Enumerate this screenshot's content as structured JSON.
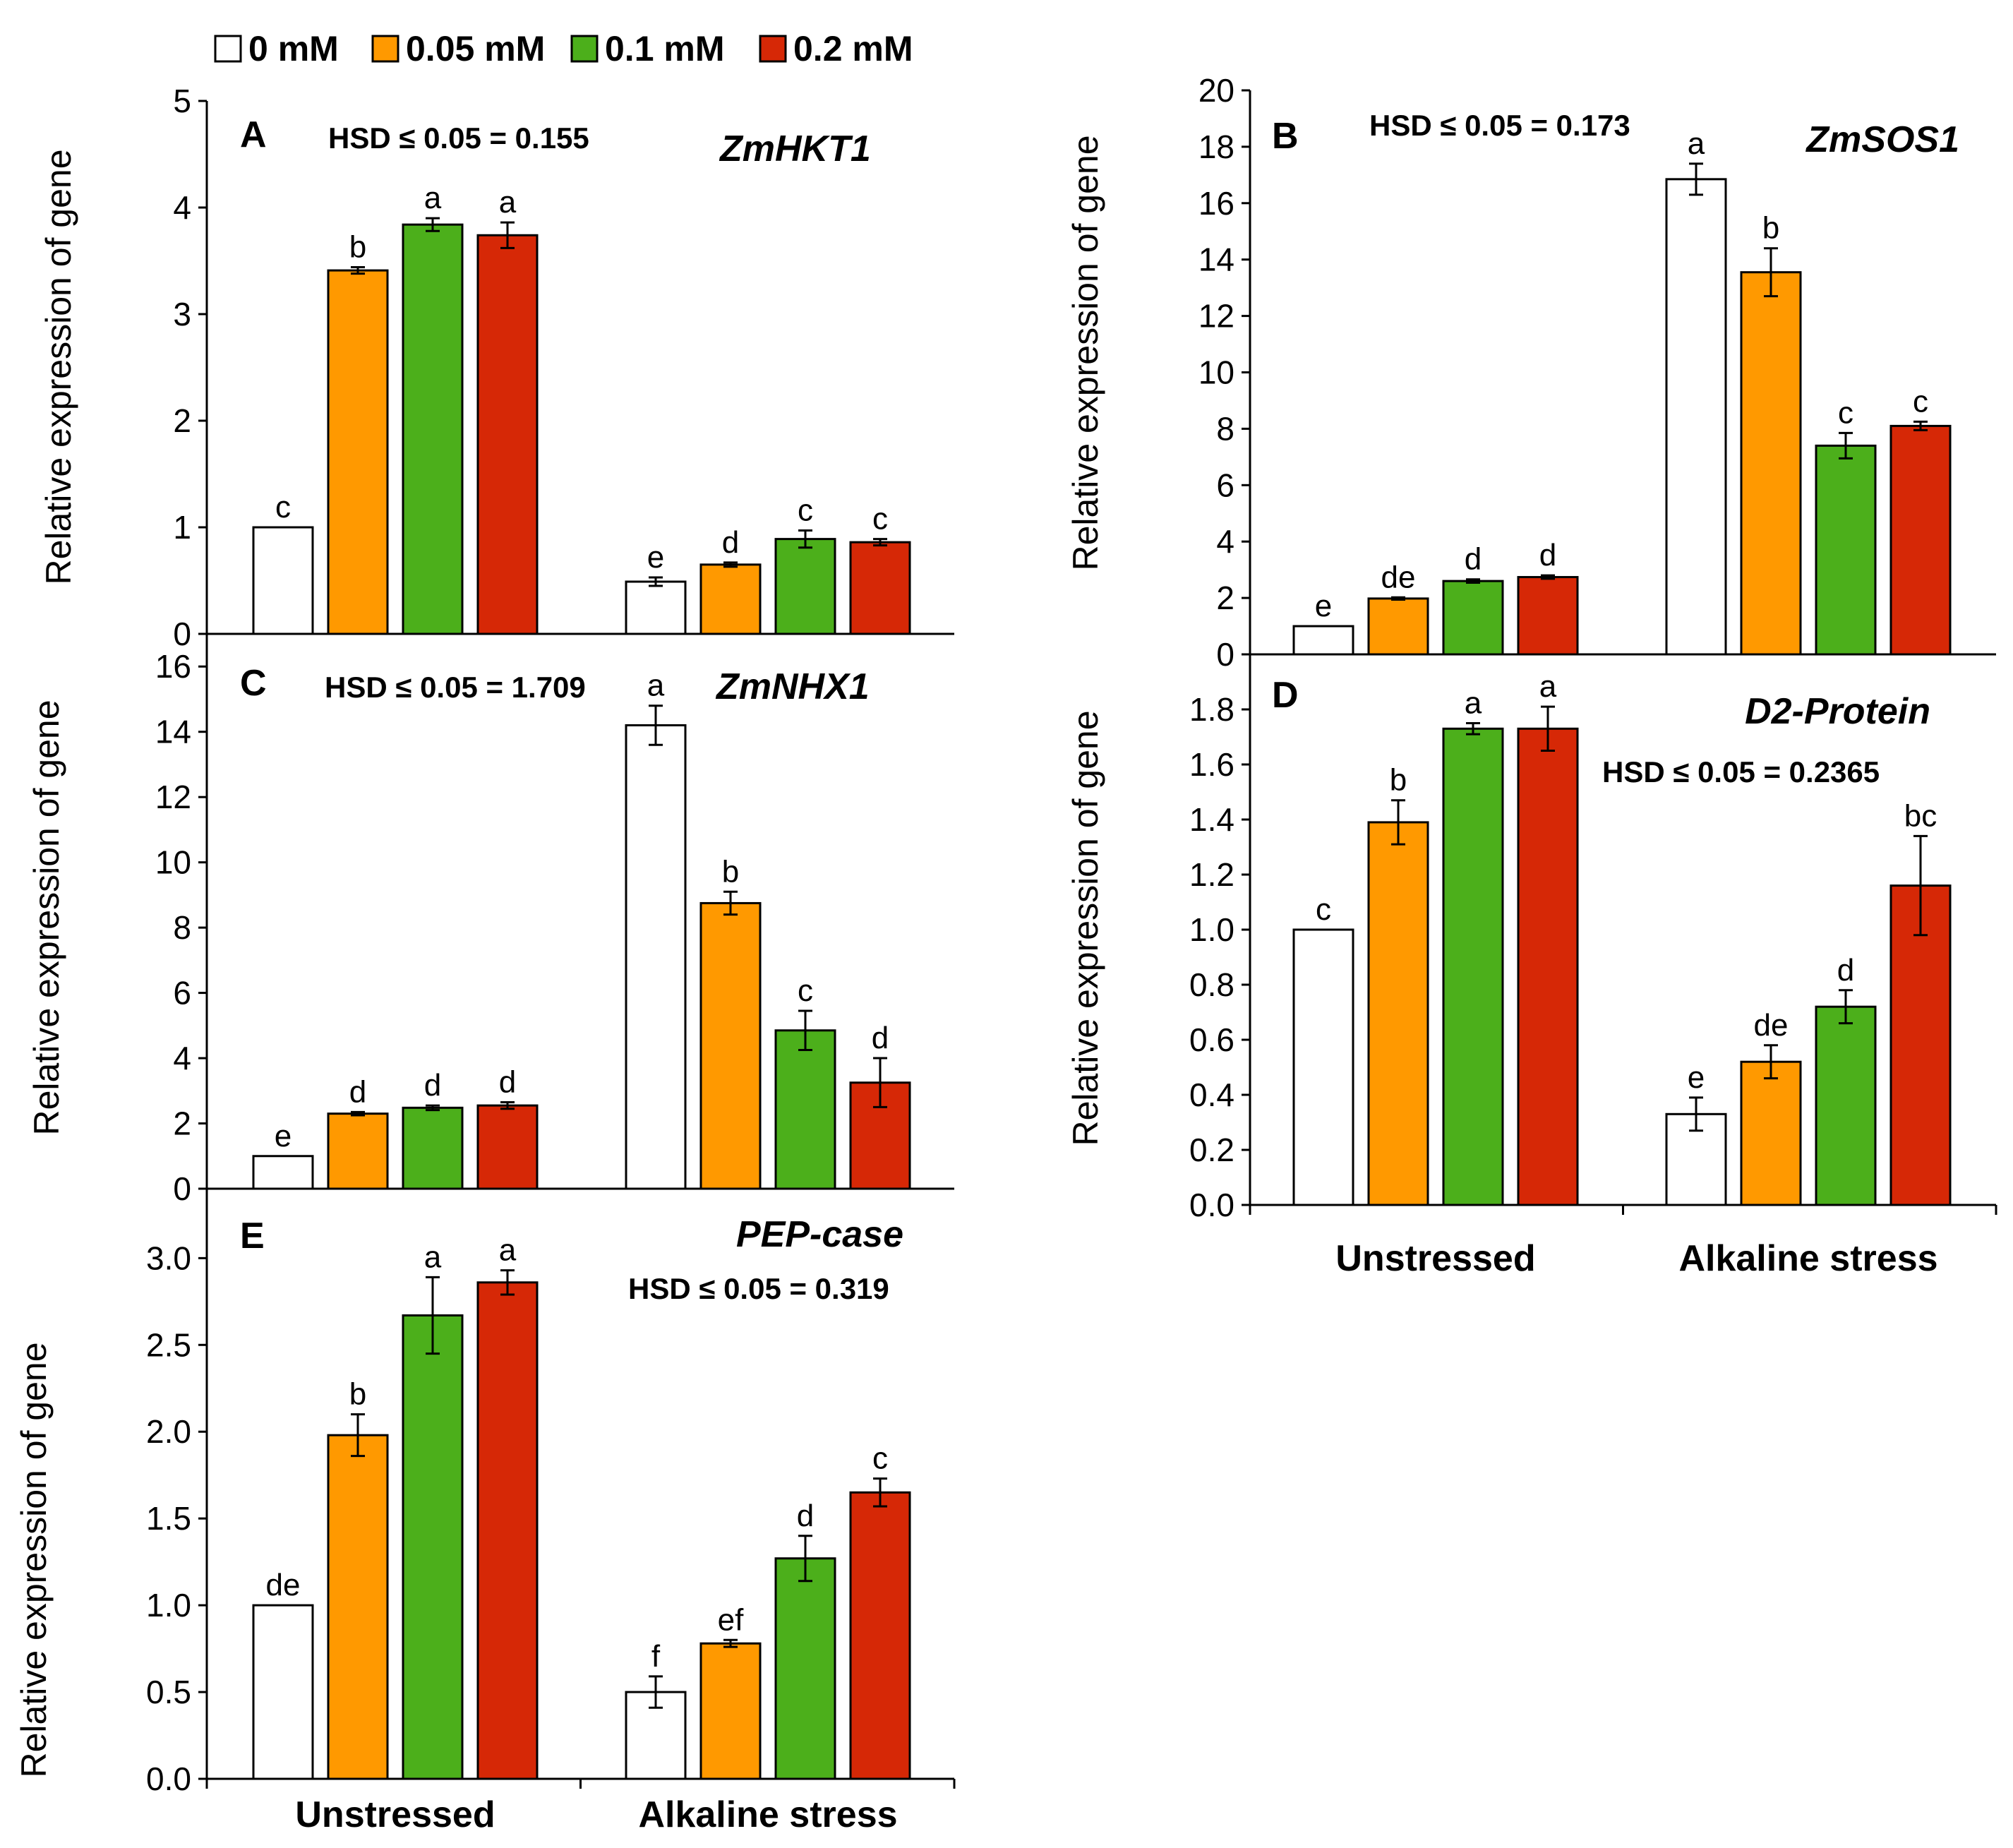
{
  "legend": [
    {
      "label": "0 mM",
      "color": "#ffffff"
    },
    {
      "label": "0.05 mM",
      "color": "#ff9900"
    },
    {
      "label": "0.1 mM",
      "color": "#4caf1b"
    },
    {
      "label": "0.2 mM",
      "color": "#d62806"
    }
  ],
  "chart_data": [
    {
      "type": "bar",
      "panel": "A",
      "title": "ZmHKT1",
      "hsd": "HSD ≤ 0.05 = 0.155",
      "ylabel": "Relative expression of gene",
      "ylim": [
        0,
        5
      ],
      "yticks": [
        "0",
        "1",
        "2",
        "3",
        "4",
        "5"
      ],
      "categories": [
        "Unstressed",
        "Alkaline stress"
      ],
      "series": [
        {
          "name": "0 mM",
          "values": [
            1.0,
            0.49
          ],
          "errors": [
            0.0,
            0.04
          ],
          "letters": [
            "c",
            "e"
          ]
        },
        {
          "name": "0.05 mM",
          "values": [
            3.41,
            0.65
          ],
          "errors": [
            0.03,
            0.02
          ],
          "letters": [
            "b",
            "d"
          ]
        },
        {
          "name": "0.1 mM",
          "values": [
            3.84,
            0.89
          ],
          "errors": [
            0.06,
            0.08
          ],
          "letters": [
            "a",
            "c"
          ]
        },
        {
          "name": "0.2 mM",
          "values": [
            3.74,
            0.86
          ],
          "errors": [
            0.12,
            0.03
          ],
          "letters": [
            "a",
            "c"
          ]
        }
      ]
    },
    {
      "type": "bar",
      "panel": "B",
      "title": "ZmSOS1",
      "hsd": "HSD ≤ 0.05 = 0.173",
      "ylabel": "Relative expression of gene",
      "ylim": [
        0,
        20
      ],
      "yticks": [
        "0",
        "2",
        "4",
        "6",
        "8",
        "10",
        "12",
        "14",
        "16",
        "18",
        "20"
      ],
      "categories": [
        "Unstressed",
        "Alkaline stress"
      ],
      "series": [
        {
          "name": "0 mM",
          "values": [
            1.0,
            16.85
          ],
          "errors": [
            0.0,
            0.55
          ],
          "letters": [
            "e",
            "a"
          ]
        },
        {
          "name": "0.05 mM",
          "values": [
            1.98,
            13.55
          ],
          "errors": [
            0.04,
            0.85
          ],
          "letters": [
            "de",
            "b"
          ]
        },
        {
          "name": "0.1 mM",
          "values": [
            2.6,
            7.4
          ],
          "errors": [
            0.06,
            0.45
          ],
          "letters": [
            "d",
            "c"
          ]
        },
        {
          "name": "0.2 mM",
          "values": [
            2.74,
            8.1
          ],
          "errors": [
            0.06,
            0.15
          ],
          "letters": [
            "d",
            "c"
          ]
        }
      ]
    },
    {
      "type": "bar",
      "panel": "C",
      "title": "ZmNHX1",
      "hsd": "HSD ≤ 0.05 = 1.709",
      "ylabel": "Relative expression of gene",
      "ylim": [
        0,
        17
      ],
      "yticks": [
        "0",
        "2",
        "4",
        "6",
        "8",
        "10",
        "12",
        "14",
        "16"
      ],
      "categories": [
        "Unstressed",
        "Alkaline stress"
      ],
      "series": [
        {
          "name": "0 mM",
          "values": [
            1.0,
            14.2
          ],
          "errors": [
            0.0,
            0.6
          ],
          "letters": [
            "e",
            "a"
          ]
        },
        {
          "name": "0.05 mM",
          "values": [
            2.3,
            8.75
          ],
          "errors": [
            0.05,
            0.35
          ],
          "letters": [
            "d",
            "b"
          ]
        },
        {
          "name": "0.1 mM",
          "values": [
            2.48,
            4.85
          ],
          "errors": [
            0.07,
            0.6
          ],
          "letters": [
            "d",
            "c"
          ]
        },
        {
          "name": "0.2 mM",
          "values": [
            2.55,
            3.25
          ],
          "errors": [
            0.1,
            0.75
          ],
          "letters": [
            "d",
            "d"
          ]
        }
      ]
    },
    {
      "type": "bar",
      "panel": "D",
      "title": "D2-Protein",
      "hsd": "HSD ≤ 0.05 = 0.2365",
      "ylabel": "Relative expression of gene",
      "ylim": [
        0,
        2.0
      ],
      "yticks": [
        "0.0",
        "0.2",
        "0.4",
        "0.6",
        "0.8",
        "1.0",
        "1.2",
        "1.4",
        "1.6",
        "1.8"
      ],
      "categories": [
        "Unstressed",
        "Alkaline stress"
      ],
      "series": [
        {
          "name": "0 mM",
          "values": [
            1.0,
            0.33
          ],
          "errors": [
            0.0,
            0.06
          ],
          "letters": [
            "c",
            "e"
          ]
        },
        {
          "name": "0.05 mM",
          "values": [
            1.39,
            0.52
          ],
          "errors": [
            0.08,
            0.06
          ],
          "letters": [
            "b",
            "de"
          ]
        },
        {
          "name": "0.1 mM",
          "values": [
            1.73,
            0.72
          ],
          "errors": [
            0.02,
            0.06
          ],
          "letters": [
            "a",
            "d"
          ]
        },
        {
          "name": "0.2 mM",
          "values": [
            1.73,
            1.16
          ],
          "errors": [
            0.08,
            0.18
          ],
          "letters": [
            "a",
            "bc"
          ]
        }
      ]
    },
    {
      "type": "bar",
      "panel": "E",
      "title": "PEP-case",
      "hsd": "HSD ≤ 0.05 = 0.319",
      "ylabel": "Relative expression of gene",
      "ylim": [
        0,
        3.4
      ],
      "yticks": [
        "0.0",
        "0.5",
        "1.0",
        "1.5",
        "2.0",
        "2.5",
        "3.0"
      ],
      "categories": [
        "Unstressed",
        "Alkaline stress"
      ],
      "series": [
        {
          "name": "0 mM",
          "values": [
            1.0,
            0.5
          ],
          "errors": [
            0.0,
            0.09
          ],
          "letters": [
            "de",
            "f"
          ]
        },
        {
          "name": "0.05 mM",
          "values": [
            1.98,
            0.78
          ],
          "errors": [
            0.12,
            0.02
          ],
          "letters": [
            "b",
            "ef"
          ]
        },
        {
          "name": "0.1 mM",
          "values": [
            2.67,
            1.27
          ],
          "errors": [
            0.22,
            0.13
          ],
          "letters": [
            "a",
            "d"
          ]
        },
        {
          "name": "0.2 mM",
          "values": [
            2.86,
            1.65
          ],
          "errors": [
            0.07,
            0.08
          ],
          "letters": [
            "a",
            "c"
          ]
        }
      ]
    }
  ]
}
